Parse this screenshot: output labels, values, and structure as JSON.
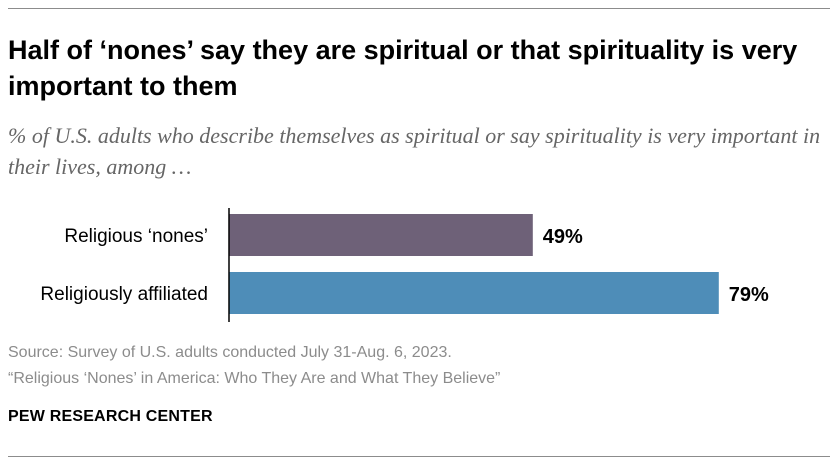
{
  "title": "Half of ‘nones’ say they are spiritual or that spirituality is very important to them",
  "subtitle": "% of U.S. adults who describe themselves as spiritual or say spirituality is very important in their lives, among …",
  "chart_data": {
    "type": "bar",
    "orientation": "horizontal",
    "categories": [
      "Religious ‘nones’",
      "Religiously affiliated"
    ],
    "values": [
      49,
      79
    ],
    "value_labels": [
      "49%",
      "79%"
    ],
    "colors": [
      "#6e6178",
      "#4e8db8"
    ],
    "xlim": [
      0,
      100
    ],
    "grid": false,
    "legend": "none"
  },
  "footer": {
    "source": "Source: Survey of U.S. adults conducted July 31-Aug. 6, 2023.",
    "report": "“Religious ‘Nones’ in America: Who They Are and What They Believe”",
    "brand": "PEW RESEARCH CENTER"
  }
}
